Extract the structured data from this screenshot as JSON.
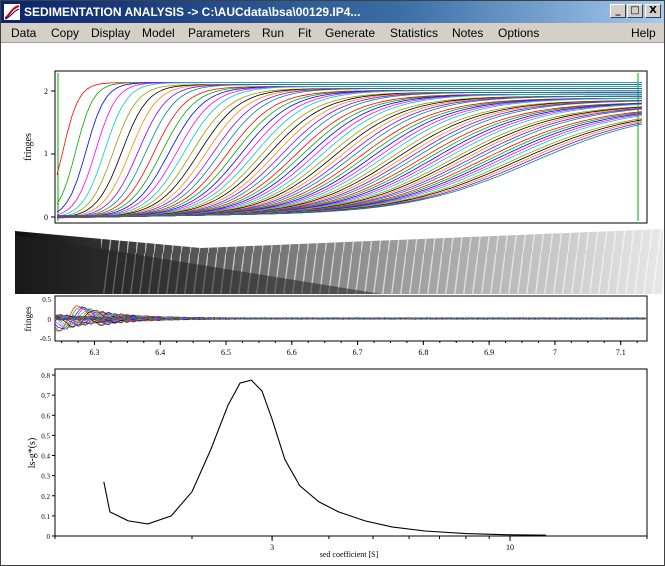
{
  "window": {
    "title": "SEDIMENTATION ANALYSIS -> C:\\AUCdata\\bsa\\00129.IP4...",
    "minimize_glyph": "_",
    "maximize_glyph": "□",
    "close_glyph": "X",
    "app_icon": "sedimentation-app-icon"
  },
  "menu": {
    "items": [
      "Data",
      "Copy",
      "Display",
      "Model",
      "Parameters",
      "Run",
      "Fit",
      "Generate",
      "Statistics",
      "Notes",
      "Options"
    ],
    "help": "Help"
  },
  "colors": {
    "titlebar": "#0a246a",
    "scan_palette": [
      "#ff0000",
      "#00aa00",
      "#0000ff",
      "#ff00ff",
      "#00cccc",
      "#999900",
      "#000000",
      "#ff8800",
      "#8800ff",
      "#008888"
    ]
  },
  "chart_data": [
    {
      "type": "line",
      "name_panel": "scans",
      "ylabel": "fringes",
      "yticks": [
        "0",
        "1",
        "2"
      ],
      "ylim": [
        -0.05,
        2.3
      ],
      "xlim": [
        6.24,
        7.14
      ],
      "description_series": "Overlaid sedimentation boundary scans, fringes versus radius"
    },
    {
      "type": "heatmap",
      "name_panel": "residual-bitmap"
    },
    {
      "type": "line",
      "name_panel": "residuals",
      "ylabel": "fringes",
      "yticks": [
        "0.5",
        "0",
        "-0.5"
      ],
      "ylim": [
        -0.6,
        0.6
      ],
      "xticks": [
        "6.3",
        "6.4",
        "6.5",
        "6.6",
        "6.7",
        "6.8",
        "6.9",
        "7",
        "7.1"
      ],
      "xtick_values": [
        6.3,
        6.4,
        6.5,
        6.6,
        6.7,
        6.8,
        6.9,
        7.0,
        7.1
      ],
      "xlim": [
        6.24,
        7.14
      ]
    },
    {
      "type": "line",
      "name_panel": "distribution",
      "ylabel": "ls-g*(s)",
      "xlabel": "sed coefficient [S]",
      "yticks": [
        "0",
        "0.1",
        "0.2",
        "0.3",
        "0.4",
        "0.5",
        "0.6",
        "0.7",
        "0.8"
      ],
      "ytick_values": [
        0,
        0.1,
        0.2,
        0.3,
        0.4,
        0.5,
        0.6,
        0.7,
        0.8
      ],
      "ylim": [
        0,
        0.83
      ],
      "xticks": [
        "3",
        "10"
      ],
      "xtick_values": [
        3,
        10
      ],
      "xscale": "log",
      "xlim": [
        1.0,
        20.0
      ],
      "x": [
        1.28,
        1.32,
        1.45,
        1.6,
        1.8,
        2.0,
        2.2,
        2.4,
        2.55,
        2.7,
        2.85,
        3.0,
        3.2,
        3.45,
        3.8,
        4.2,
        4.8,
        5.5,
        6.5,
        8.0,
        10.0,
        12.0
      ],
      "y": [
        0.27,
        0.12,
        0.075,
        0.06,
        0.1,
        0.22,
        0.43,
        0.65,
        0.76,
        0.775,
        0.72,
        0.58,
        0.38,
        0.25,
        0.17,
        0.12,
        0.075,
        0.045,
        0.025,
        0.012,
        0.006,
        0.004
      ]
    }
  ]
}
